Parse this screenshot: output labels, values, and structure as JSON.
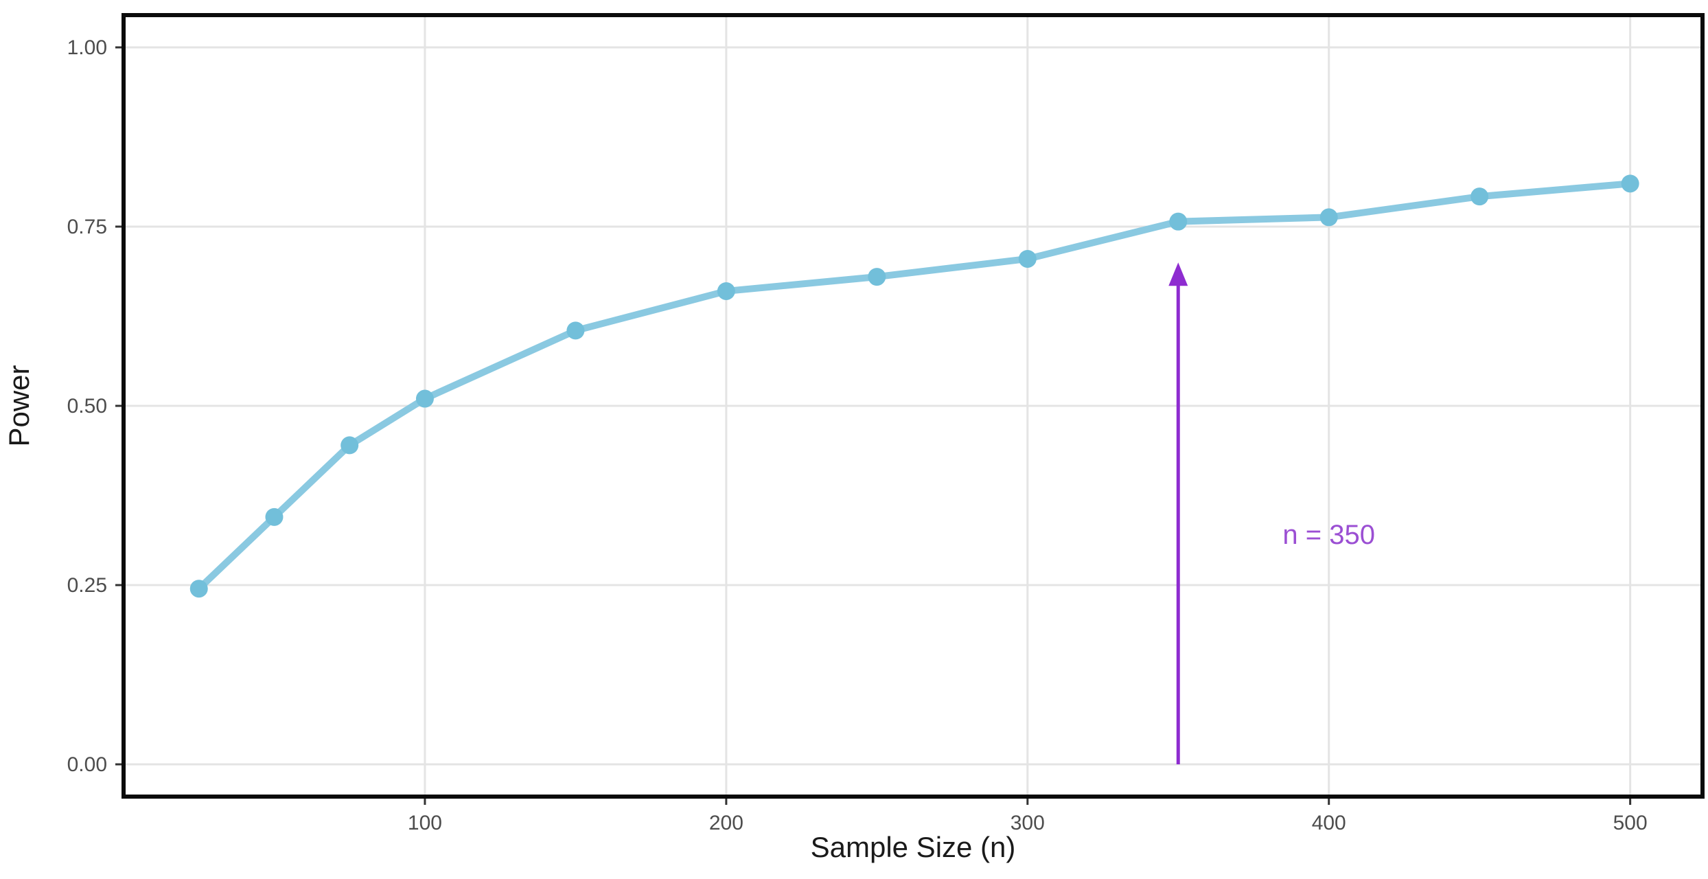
{
  "figure": {
    "description": "Statistical power curve line chart"
  },
  "chart_data": {
    "type": "line",
    "title": "",
    "xlabel": "Sample Size (n)",
    "ylabel": "Power",
    "x": [
      25,
      50,
      75,
      100,
      150,
      200,
      250,
      300,
      350,
      400,
      450,
      500
    ],
    "series": [
      {
        "name": "power",
        "values": [
          0.245,
          0.345,
          0.445,
          0.51,
          0.605,
          0.66,
          0.68,
          0.705,
          0.757,
          0.763,
          0.792,
          0.81
        ]
      }
    ],
    "x_ticks": [
      {
        "value": 100,
        "label": "100"
      },
      {
        "value": 200,
        "label": "200"
      },
      {
        "value": 300,
        "label": "300"
      },
      {
        "value": 400,
        "label": "400"
      },
      {
        "value": 500,
        "label": "500"
      }
    ],
    "y_ticks": [
      {
        "value": 0.0,
        "label": "0.00"
      },
      {
        "value": 0.25,
        "label": "0.25"
      },
      {
        "value": 0.5,
        "label": "0.50"
      },
      {
        "value": 0.75,
        "label": "0.75"
      },
      {
        "value": 1.0,
        "label": "1.00"
      }
    ],
    "xlim": [
      0,
      524
    ],
    "ylim": [
      -0.045,
      1.045
    ],
    "grid": "major-only",
    "legend": "none",
    "annotation": {
      "text": "n = 350",
      "arrow_x": 350,
      "arrow_y_from": 0.0,
      "arrow_y_to": 0.7,
      "label_x": 400,
      "label_y": 0.32
    },
    "colors": {
      "line": "#8ac9e1",
      "point": "#72bfda",
      "arrow": "#8e2cd0",
      "annotation_text": "#9b4fd3",
      "grid": "#e4e4e4",
      "tick_text": "#4d4d4d",
      "title_text": "#1a1a1a",
      "panel_border": "#0b0b0b",
      "background": "#ffffff",
      "tick_mark": "#333333"
    }
  }
}
